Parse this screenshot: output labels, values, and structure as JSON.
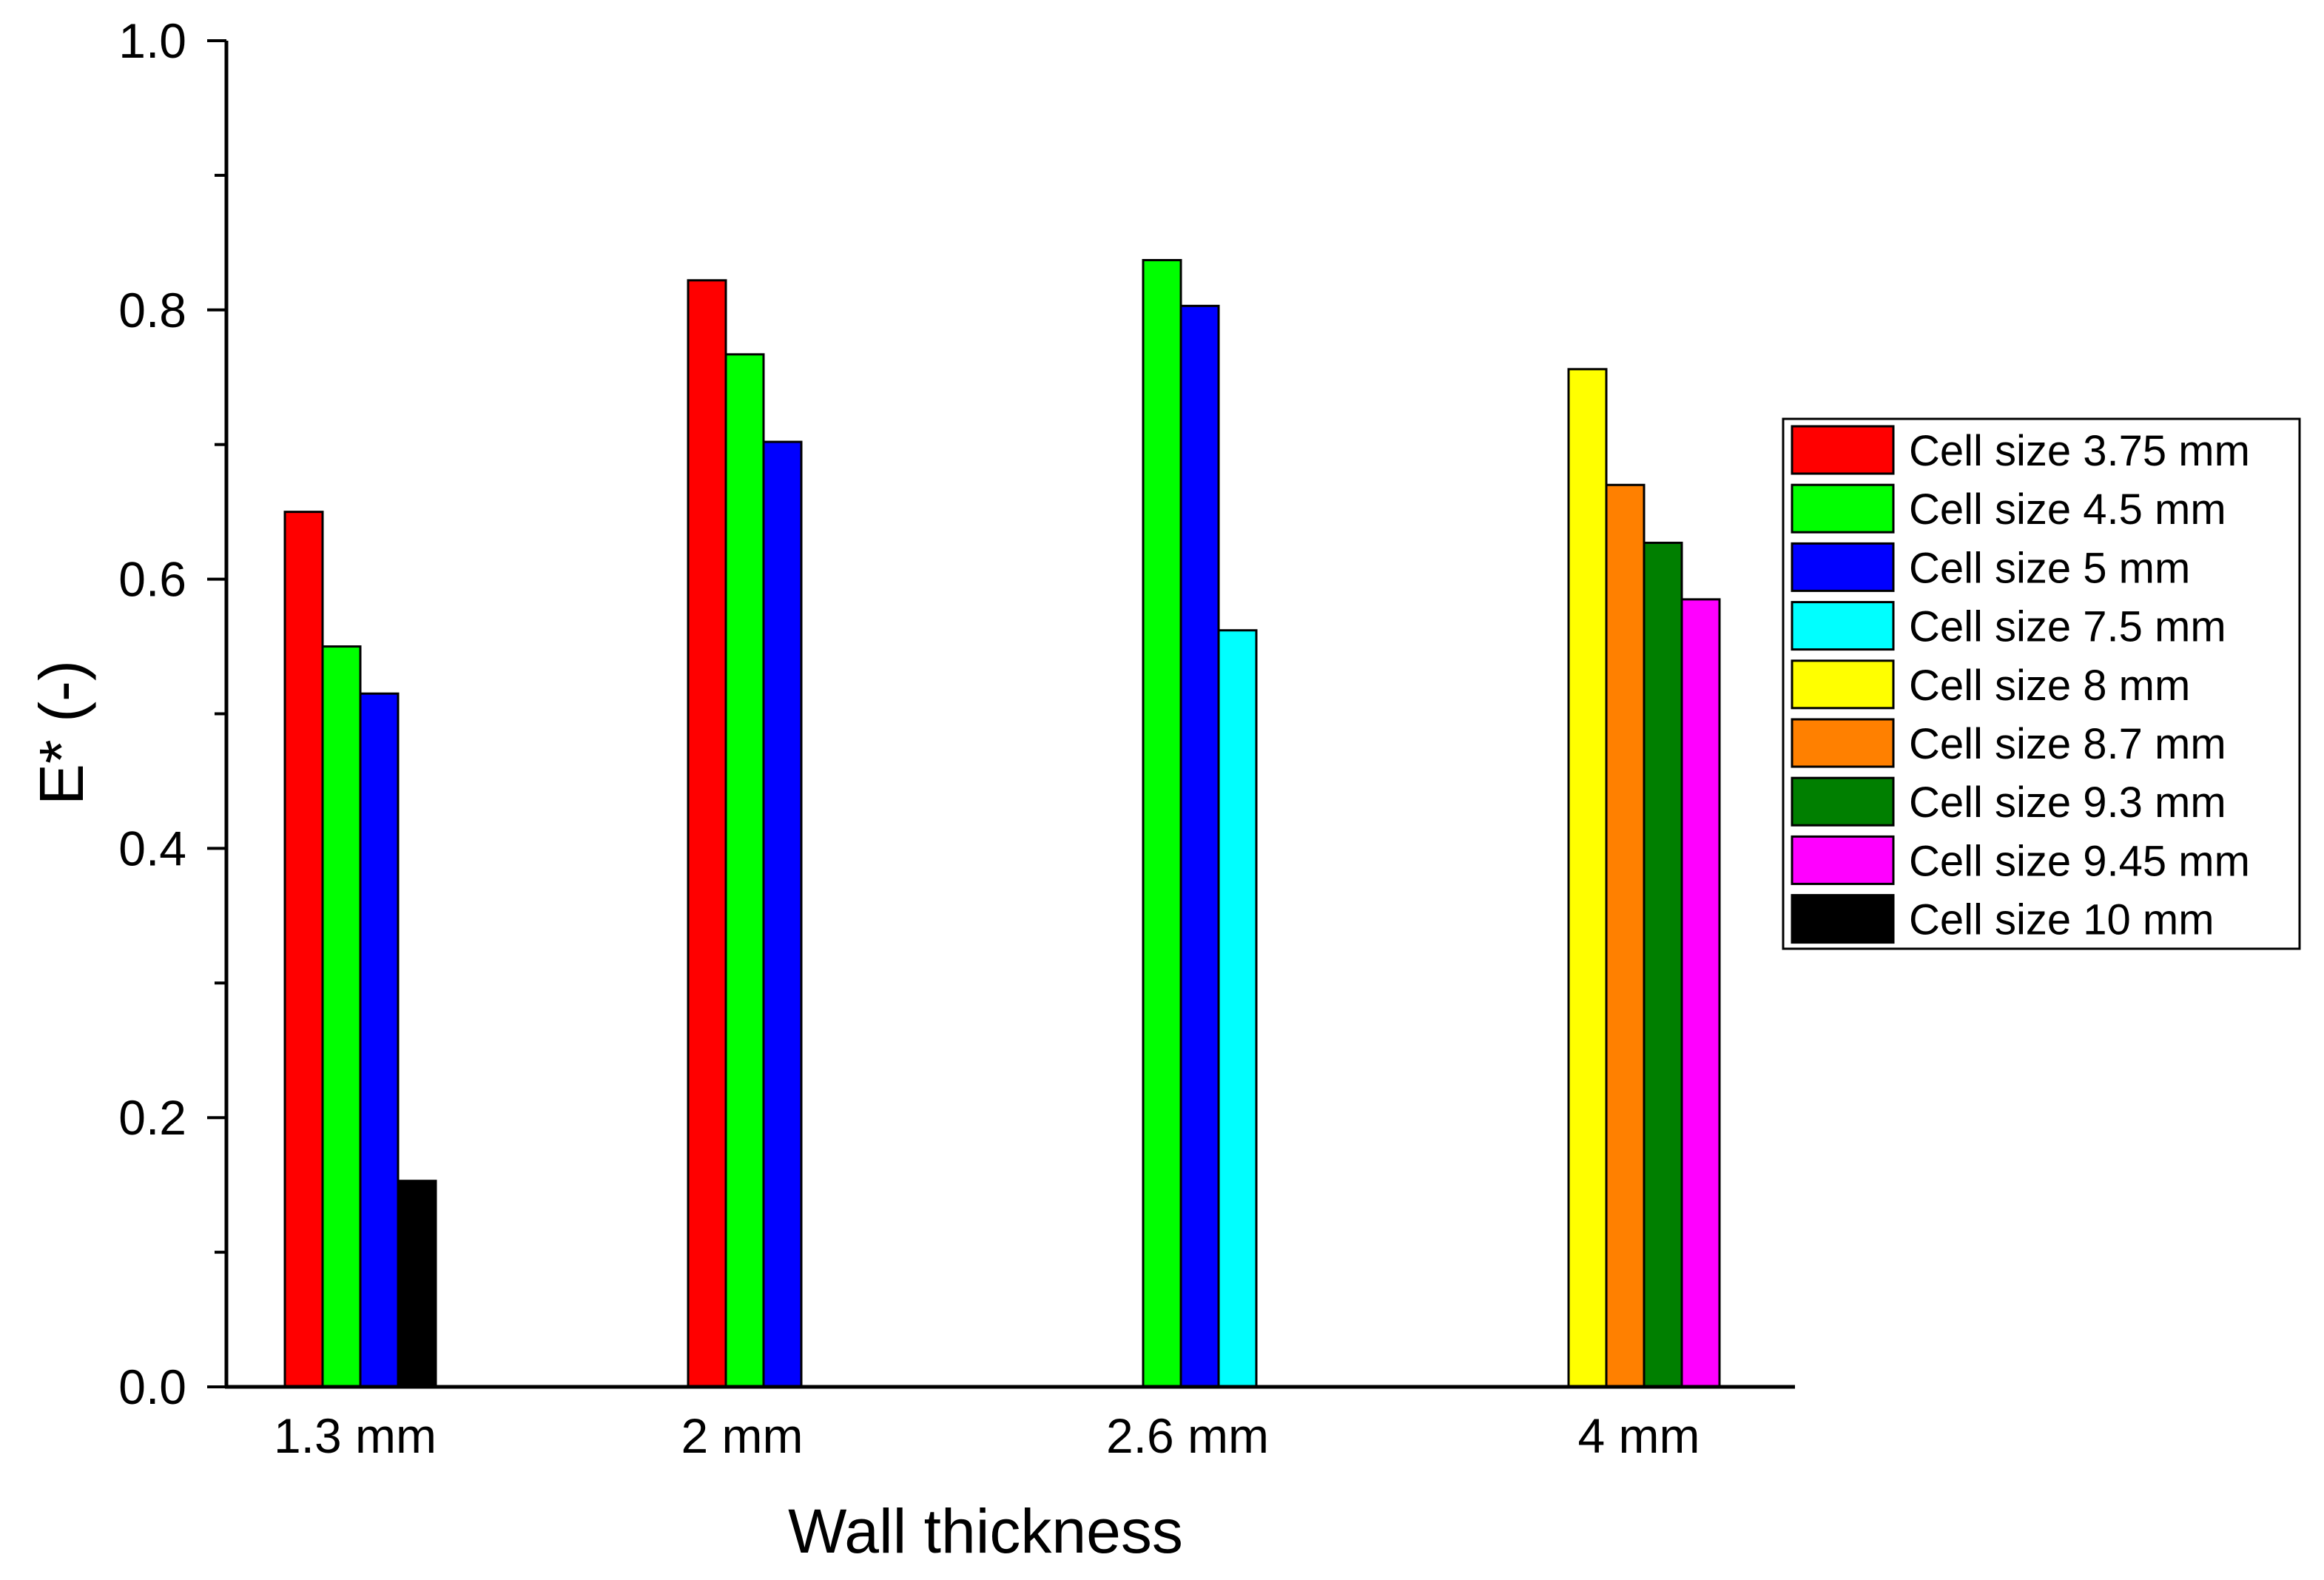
{
  "chart_data": {
    "type": "bar",
    "title": "",
    "xlabel": "Wall thickness",
    "ylabel": "E* (-)",
    "ylim": [
      0,
      1.0
    ],
    "yticks": [
      "0.0",
      "0.2",
      "0.4",
      "0.6",
      "0.8",
      "1.0"
    ],
    "grid": false,
    "legend_position": "right",
    "categories": [
      "1.3 mm",
      "2 mm",
      "2.6 mm",
      "4 mm"
    ],
    "groups": [
      {
        "category": "1.3 mm",
        "bars": [
          {
            "series": "Cell size 3.75 mm",
            "value": 0.65
          },
          {
            "series": "Cell size 4.5 mm",
            "value": 0.55
          },
          {
            "series": "Cell size 5 mm",
            "value": 0.515
          },
          {
            "series": "Cell size 10 mm",
            "value": 0.153
          }
        ]
      },
      {
        "category": "2 mm",
        "bars": [
          {
            "series": "Cell size 3.75 mm",
            "value": 0.822
          },
          {
            "series": "Cell size 4.5 mm",
            "value": 0.767
          },
          {
            "series": "Cell size 5 mm",
            "value": 0.702
          }
        ]
      },
      {
        "category": "2.6 mm",
        "bars": [
          {
            "series": "Cell size 4.5 mm",
            "value": 0.837
          },
          {
            "series": "Cell size 5 mm",
            "value": 0.803
          },
          {
            "series": "Cell size 7.5 mm",
            "value": 0.562
          }
        ]
      },
      {
        "category": "4 mm",
        "bars": [
          {
            "series": "Cell size 8 mm",
            "value": 0.756
          },
          {
            "series": "Cell size 8.7 mm",
            "value": 0.67
          },
          {
            "series": "Cell size 9.3 mm",
            "value": 0.627
          },
          {
            "series": "Cell size 9.45 mm",
            "value": 0.585
          }
        ]
      }
    ],
    "series": [
      {
        "name": "Cell size 3.75 mm",
        "color": "#ff0000"
      },
      {
        "name": "Cell size 4.5 mm",
        "color": "#00ff00"
      },
      {
        "name": "Cell size 5 mm",
        "color": "#0000ff"
      },
      {
        "name": "Cell size 7.5 mm",
        "color": "#00ffff"
      },
      {
        "name": "Cell size 8 mm",
        "color": "#ffff00"
      },
      {
        "name": "Cell size 8.7 mm",
        "color": "#ff8000"
      },
      {
        "name": "Cell size 9.3 mm",
        "color": "#007f00"
      },
      {
        "name": "Cell size 9.45 mm",
        "color": "#ff00ff"
      },
      {
        "name": "Cell size 10 mm",
        "color": "#000000"
      }
    ]
  }
}
